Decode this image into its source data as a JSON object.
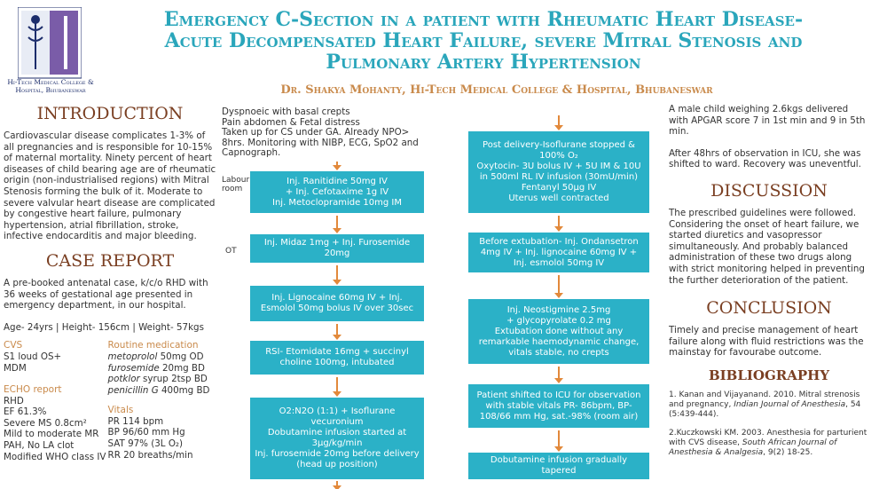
{
  "header": {
    "title_lines": [
      "Emergency C-Section in a patient with Rheumatic Heart Disease-",
      "Acute Decompensated Heart Failure, severe Mitral Stenosis and",
      "Pulmonary Artery Hypertension"
    ],
    "author": "Dr. Shakya Mohanty, Hi-Tech Medical College & Hospital, Bhubaneswar",
    "logo_caption": "Hi-Tech Medical College & Hospital, Bhubaneswar"
  },
  "introduction": {
    "heading": "INTRODUCTION",
    "text": "Cardiovascular disease complicates 1-3% of all pregnancies and is responsible for 10-15% of maternal mortality. Ninety percent of heart diseases of child bearing age are of rheumatic origin (non-industrialised regions) with Mitral Stenosis forming the bulk of it. Moderate to severe valvular heart disease are complicated by congestive heart failure, pulmonary hypertension, atrial fibrillation, stroke, infective endocarditis and major bleeding."
  },
  "case_report": {
    "heading": "CASE REPORT",
    "text": "A pre-booked antenatal case, k/c/o RHD with 36 weeks of gestational age presented in emergency department, in our hospital.",
    "vitals_line": "Age- 24yrs | Height- 156cm | Weight- 57kgs",
    "cvs": {
      "heading": "CVS",
      "lines": [
        "S1 loud OS+",
        "MDM"
      ]
    },
    "echo": {
      "heading": "ECHO report",
      "lines": [
        "RHD",
        "EF 61.3%",
        "Severe MS 0.8cm²",
        "Mild to moderate MR",
        "PAH, No LA clot",
        "Modified WHO class IV"
      ]
    },
    "routine_medication": {
      "heading": "Routine medication",
      "items": [
        {
          "drug": "metoprolol",
          "dose": " 50mg OD"
        },
        {
          "drug": "furosemide",
          "dose": " 20mg BD"
        },
        {
          "drug": "potklor",
          "dose": " syrup 2tsp BD"
        },
        {
          "drug": "penicillin G",
          "dose": " 400mg BD"
        }
      ]
    },
    "vitals": {
      "heading": "Vitals",
      "lines": [
        "PR 114 bpm",
        "BP 96/60 mm Hg",
        "SAT 97% (3L O₂)",
        "RR 20 breaths/min"
      ]
    }
  },
  "flowchart": {
    "intro_lines": [
      "Dyspnoeic with basal crepts",
      "Pain abdomen & Fetal distress",
      "Taken up for CS under GA. Already NPO> 8hrs. Monitoring with NIBP, ECG, SpO2 and Capnograph."
    ],
    "labels": [
      "Labour room",
      "OT"
    ],
    "left_boxes": [
      "Inj. Ranitidine 50mg IV\n+ Inj. Cefotaxime 1g IV\nInj. Metoclopramide 10mg IM",
      "Inj. Midaz 1mg + Inj. Furosemide 20mg",
      "Inj. Lignocaine 60mg IV + Inj.\nEsmolol 50mg bolus IV over 30sec",
      "RSI- Etomidate 16mg + succinyl\ncholine 100mg, intubated",
      "O2:N2O (1:1) + Isoflurane\nvecuronium\nDobutamine infusion started at\n3μg/kg/min\nInj. furosemide 20mg before delivery\n(head up position)"
    ],
    "right_boxes": [
      "Post delivery-Isoflurane stopped &\n100% O₂\nOxytocin- 3U bolus IV + 5U IM & 10U\nin 500ml RL IV infusion (30mU/min)\nFentanyl 50μg IV\nUterus well contracted",
      "Before extubation- Inj. Ondansetron\n4mg IV + Inj. lignocaine 60mg IV +\nInj. esmolol 50mg IV",
      "Inj. Neostigmine 2.5mg\n+ glycopyrolate 0.2 mg\nExtubation done without any\nremarkable haemodynamic change,\nvitals stable, no crepts",
      "Patient shifted to ICU for observation\nwith stable vitals PR- 86bpm, BP-\n108/66 mm Hg, sat.-98% (room air)",
      "Dobutamine infusion gradually tapered"
    ]
  },
  "outcome": [
    "A male child weighing 2.6kgs delivered with APGAR score 7 in 1st min and 9 in 5th min.",
    "After 48hrs of observation in ICU, she was shifted to ward. Recovery was uneventful."
  ],
  "discussion": {
    "heading": "DISCUSSION",
    "text": "The prescribed guidelines were followed. Considering the onset of heart failure, we started diuretics and vasopressor simultaneously. And probably balanced administration of these two drugs along with strict monitoring helped in preventing the further deterioration of the patient."
  },
  "conclusion": {
    "heading": "CONCLUSION",
    "text": "Timely and precise management of heart failure along with fluid restrictions was the mainstay for favourabe outcome."
  },
  "bibliography": {
    "heading": "BIBLIOGRAPHY",
    "entries": [
      [
        "1. Kanan and Vijayanand. 2010. Mitral strenosis and pregnancy, ",
        "Indian Journal of Anesthesia",
        ", 54 (5:439-444)."
      ],
      [
        "2.Kuczkowski KM. 2003. Anesthesia for parturient with CVS disease, ",
        "South African Journal of Anesthesia & Analgesia",
        ", 9(2) 18-25."
      ]
    ]
  }
}
